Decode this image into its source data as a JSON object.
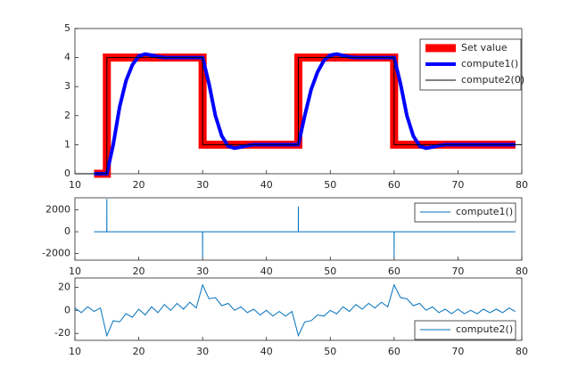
{
  "chart_data": [
    {
      "type": "line",
      "xlim": [
        10,
        80
      ],
      "ylim": [
        0,
        5
      ],
      "xticks": [
        10,
        20,
        30,
        40,
        50,
        60,
        70,
        80
      ],
      "yticks": [
        0,
        1,
        2,
        3,
        4,
        5
      ],
      "legend": "upper right",
      "series": [
        {
          "name": "Set value",
          "color": "#ff0000",
          "x": [
            13,
            15,
            15,
            30,
            30,
            45,
            45,
            60,
            60,
            79
          ],
          "values": [
            0,
            0,
            4,
            4,
            1,
            1,
            4,
            4,
            1,
            1
          ]
        },
        {
          "name": "compute1()",
          "color": "#0000ff",
          "x": [
            13,
            14,
            15,
            16,
            17,
            18,
            19,
            20,
            21,
            22,
            23,
            24,
            25,
            26,
            27,
            28,
            29,
            30,
            31,
            32,
            33,
            34,
            35,
            36,
            37,
            38,
            39,
            40,
            41,
            42,
            43,
            44,
            45,
            46,
            47,
            48,
            49,
            50,
            51,
            52,
            53,
            54,
            55,
            56,
            57,
            58,
            59,
            60,
            61,
            62,
            63,
            64,
            65,
            66,
            67,
            68,
            69,
            70,
            71,
            72,
            73,
            74,
            75,
            76,
            77,
            78,
            79
          ],
          "values": [
            0,
            0,
            0,
            1.0,
            2.3,
            3.2,
            3.75,
            4.05,
            4.12,
            4.08,
            4.03,
            4.0,
            4.0,
            4.0,
            4.0,
            4.0,
            4.0,
            4.0,
            3.1,
            2.0,
            1.3,
            0.95,
            0.88,
            0.92,
            0.97,
            1.0,
            1.0,
            1.0,
            1.0,
            1.0,
            1.0,
            1.0,
            1.0,
            2.0,
            2.9,
            3.5,
            3.9,
            4.08,
            4.12,
            4.07,
            4.02,
            4.0,
            4.0,
            4.0,
            4.0,
            4.0,
            4.0,
            4.0,
            3.1,
            2.0,
            1.3,
            0.95,
            0.88,
            0.92,
            0.97,
            1.0,
            1.0,
            1.0,
            1.0,
            1.0,
            1.0,
            1.0,
            1.0,
            1.0,
            1.0,
            1.0,
            1.0
          ]
        },
        {
          "name": "compute2(0)",
          "color": "#000000",
          "x": [
            10,
            15,
            15,
            30,
            30,
            45,
            45,
            60,
            60,
            80
          ],
          "values": [
            0,
            0,
            4,
            4,
            1,
            1,
            4,
            4,
            1,
            1
          ]
        }
      ]
    },
    {
      "type": "line",
      "xlim": [
        10,
        80
      ],
      "ylim": [
        -2600,
        3100
      ],
      "xticks": [
        10,
        20,
        30,
        40,
        50,
        60,
        70,
        80
      ],
      "yticks": [
        -2000,
        0,
        2000
      ],
      "legend": "upper right",
      "series": [
        {
          "name": "compute1()",
          "color": "#0072bd",
          "x": [
            13,
            14.99,
            15,
            15.01,
            29.99,
            30,
            30.01,
            44.99,
            45,
            45.01,
            59.99,
            60,
            60.01,
            79
          ],
          "values": [
            0,
            0,
            3000,
            0,
            0,
            -2400,
            0,
            0,
            2300,
            0,
            0,
            -2400,
            0,
            0
          ]
        }
      ]
    },
    {
      "type": "line",
      "xlim": [
        10,
        80
      ],
      "ylim": [
        -26,
        28
      ],
      "xticks": [
        10,
        20,
        30,
        40,
        50,
        60,
        70,
        80
      ],
      "yticks": [
        -20,
        0,
        20
      ],
      "legend": "lower right",
      "series": [
        {
          "name": "compute2()",
          "color": "#0072bd",
          "x": [
            10,
            11,
            12,
            13,
            14,
            15,
            16,
            17,
            18,
            19,
            20,
            21,
            22,
            23,
            24,
            25,
            26,
            27,
            28,
            29,
            30,
            31,
            32,
            33,
            34,
            35,
            36,
            37,
            38,
            39,
            40,
            41,
            42,
            43,
            44,
            45,
            46,
            47,
            48,
            49,
            50,
            51,
            52,
            53,
            54,
            55,
            56,
            57,
            58,
            59,
            60,
            61,
            62,
            63,
            64,
            65,
            66,
            67,
            68,
            69,
            70,
            71,
            72,
            73,
            74,
            75,
            76,
            77,
            78,
            79
          ],
          "values": [
            2,
            -2,
            3,
            -1,
            2,
            -22,
            -9,
            -10,
            -3,
            -6,
            1,
            -4,
            3,
            -2,
            5,
            0,
            6,
            1,
            7,
            2,
            22,
            10,
            11,
            4,
            6,
            0,
            3,
            -2,
            1,
            -4,
            0,
            -5,
            -1,
            -5,
            -1,
            -22,
            -10,
            -9,
            -4,
            -5,
            0,
            -3,
            3,
            -1,
            5,
            1,
            6,
            2,
            7,
            3,
            22,
            11,
            10,
            4,
            6,
            0,
            3,
            -2,
            1,
            -3,
            1,
            -3,
            0,
            -3,
            1,
            -2,
            1,
            -2,
            2,
            -1
          ]
        }
      ]
    }
  ]
}
